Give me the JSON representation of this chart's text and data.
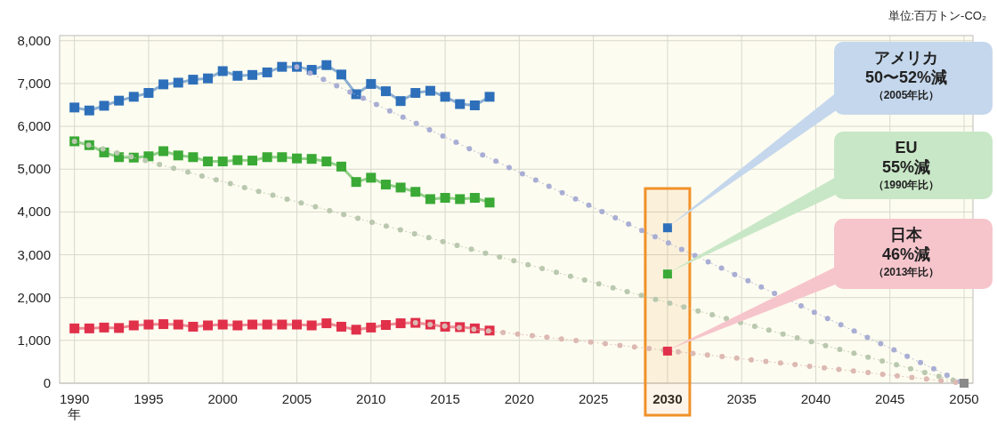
{
  "chart_data": {
    "type": "line",
    "ylabel": "単位:百万トン-CO₂",
    "x": [
      1990,
      1991,
      1992,
      1993,
      1994,
      1995,
      1996,
      1997,
      1998,
      1999,
      2000,
      2001,
      2002,
      2003,
      2004,
      2005,
      2006,
      2007,
      2008,
      2009,
      2010,
      2011,
      2012,
      2013,
      2014,
      2015,
      2016,
      2017,
      2018
    ],
    "series": [
      {
        "color": "#2e6fba",
        "values": [
          6440,
          6370,
          6480,
          6600,
          6690,
          6780,
          6980,
          7020,
          7090,
          7120,
          7290,
          7180,
          7200,
          7260,
          7390,
          7390,
          7320,
          7430,
          7210,
          6750,
          6990,
          6820,
          6590,
          6780,
          6830,
          6690,
          6520,
          6490,
          6690
        ]
      },
      {
        "color": "#3aa935",
        "values": [
          5650,
          5560,
          5390,
          5280,
          5270,
          5300,
          5420,
          5320,
          5280,
          5180,
          5180,
          5210,
          5200,
          5280,
          5280,
          5250,
          5240,
          5180,
          5060,
          4700,
          4800,
          4640,
          4570,
          4470,
          4300,
          4330,
          4300,
          4330,
          4220
        ]
      },
      {
        "color": "#e0304a",
        "values": [
          1280,
          1280,
          1300,
          1290,
          1350,
          1370,
          1380,
          1370,
          1320,
          1350,
          1370,
          1350,
          1370,
          1370,
          1370,
          1370,
          1350,
          1400,
          1320,
          1250,
          1300,
          1360,
          1400,
          1410,
          1370,
          1320,
          1310,
          1280,
          1230
        ]
      },
      {
        "color": "#a9aed4",
        "x": [
          2005,
          2050
        ],
        "values": [
          7390,
          0
        ],
        "line_style": "dotted",
        "marker": "none"
      },
      {
        "color": "#b9c8ae",
        "x": [
          1990,
          2050
        ],
        "values": [
          5650,
          0
        ],
        "line_style": "dotted",
        "marker": "none"
      },
      {
        "color": "#dcb9b2",
        "x": [
          2013,
          2050
        ],
        "values": [
          1410,
          0
        ],
        "line_style": "dotted",
        "marker": "none"
      },
      {
        "type": "scatter",
        "color": "#2e6fba",
        "x": [
          2030
        ],
        "values": [
          3630
        ]
      },
      {
        "type": "scatter",
        "color": "#3aa935",
        "x": [
          2030
        ],
        "values": [
          2550
        ]
      },
      {
        "type": "scatter",
        "color": "#e0304a",
        "x": [
          2030
        ],
        "values": [
          750
        ]
      },
      {
        "type": "scatter",
        "color": "#8a8a8a",
        "x": [
          2050
        ],
        "values": [
          0
        ]
      }
    ],
    "marker": "square",
    "grid": true,
    "xlim": [
      1989,
      2050.6
    ],
    "ylim": [
      0,
      8120
    ],
    "xticks": [
      {
        "value": 1990,
        "label": "1990\n年"
      },
      1995,
      2000,
      2005,
      2010,
      2015,
      2020,
      2025,
      2030,
      2035,
      2040,
      2045,
      2050
    ],
    "yticks": [
      {
        "value": 0,
        "label": "0"
      },
      {
        "value": 1000,
        "label": "1,000"
      },
      {
        "value": 2000,
        "label": "2,000"
      },
      {
        "value": 3000,
        "label": "3,000"
      },
      {
        "value": 4000,
        "label": "4,000"
      },
      {
        "value": 5000,
        "label": "5,000"
      },
      {
        "value": 6000,
        "label": "6,000"
      },
      {
        "value": 7000,
        "label": "7,000"
      },
      {
        "value": 8000,
        "label": "8,000"
      }
    ],
    "bands": [
      {
        "axis": "x",
        "from": 2028.5,
        "to": 2031.5,
        "color": "#f0922a"
      }
    ],
    "annotations": [
      "アメリカ",
      "50〜52%減",
      "（2005年比）",
      "EU",
      "55%減",
      "（1990年比）",
      "日本",
      "46%減",
      "（2013年比）"
    ]
  }
}
